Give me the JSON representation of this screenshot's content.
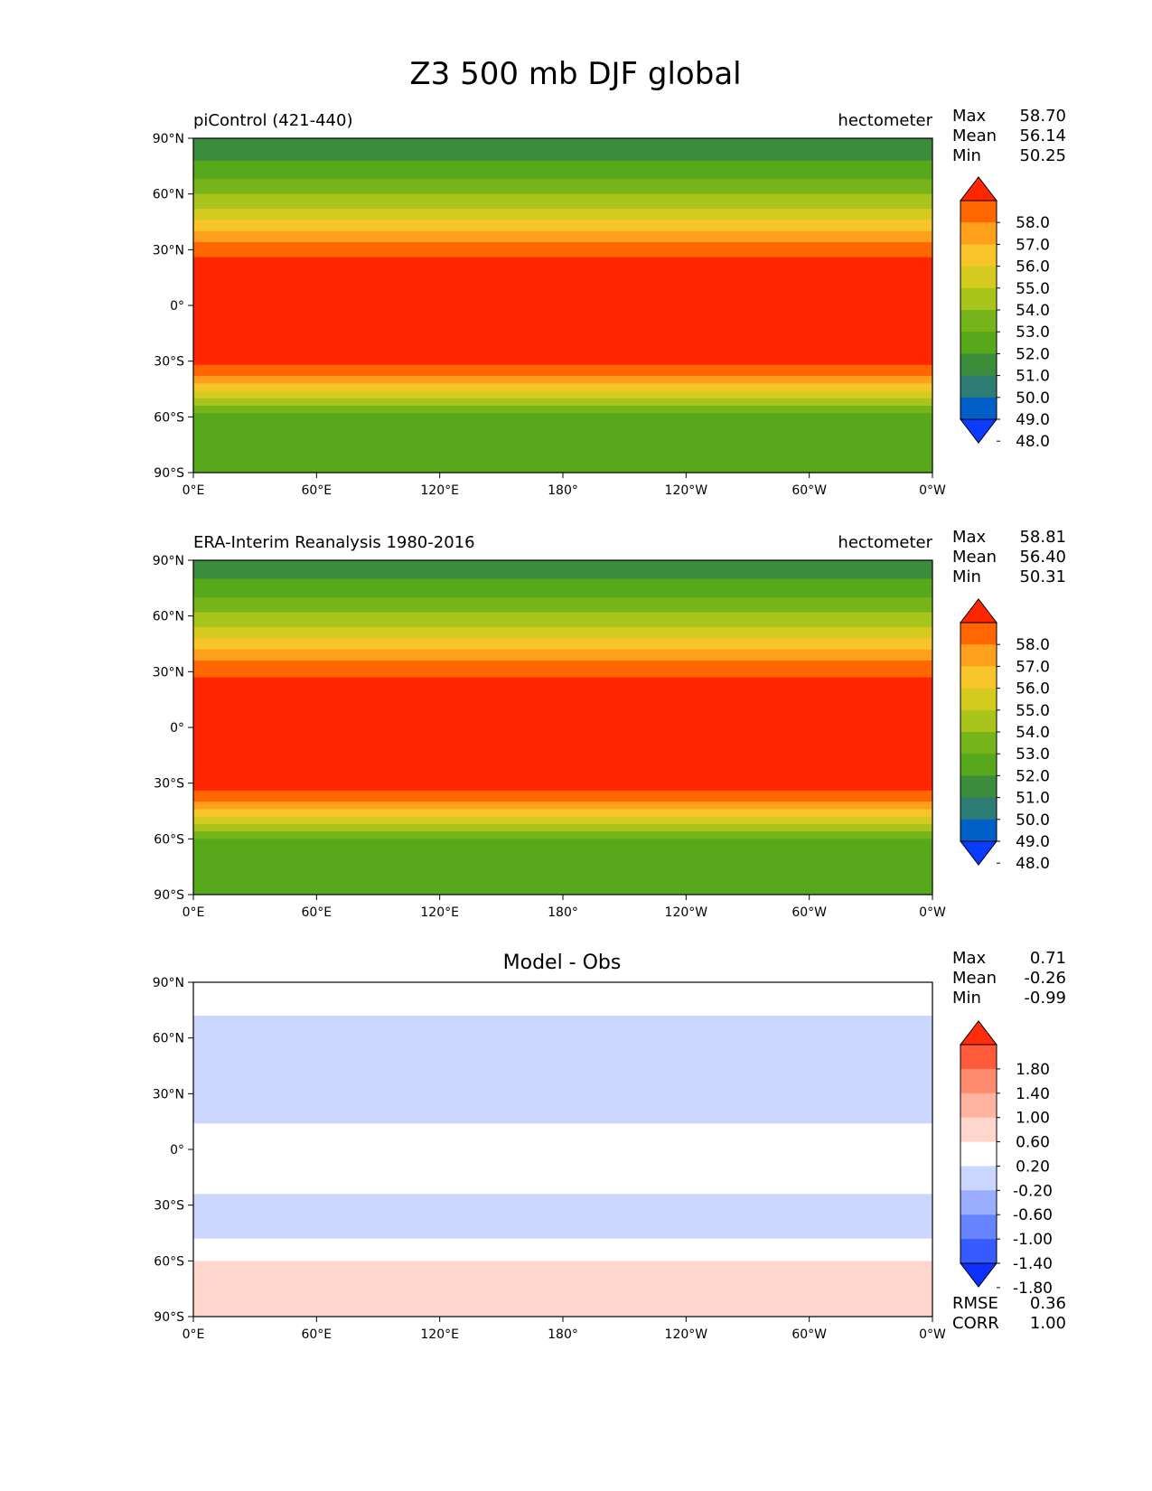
{
  "figure": {
    "title": "Z3 500 mb DJF global"
  },
  "colormap_main": {
    "labels": [
      "58.0",
      "57.0",
      "56.0",
      "55.0",
      "54.0",
      "53.0",
      "52.0",
      "51.0",
      "50.0",
      "49.0",
      "48.0"
    ],
    "colors": [
      "#ff2600",
      "#ff6600",
      "#ffa01c",
      "#f7c52a",
      "#d5cb1e",
      "#a9c51c",
      "#75b41a",
      "#57a81a",
      "#3b8c3b",
      "#2d7d74",
      "#0060c8",
      "#0a3cff"
    ]
  },
  "colormap_diff": {
    "labels": [
      "1.80",
      "1.40",
      "1.00",
      "0.60",
      "0.20",
      "-0.20",
      "-0.60",
      "-1.00",
      "-1.40",
      "-1.80"
    ],
    "colors": [
      "#ff2b0d",
      "#ff5a3a",
      "#ff8b6e",
      "#ffb3a0",
      "#ffd6cc",
      "#ffffff",
      "#cbd6ff",
      "#9aadff",
      "#6784ff",
      "#365cff",
      "#0b30ff"
    ]
  },
  "axes": {
    "lat_ticks": [
      "90°N",
      "60°N",
      "30°N",
      "0°",
      "30°S",
      "60°S",
      "90°S"
    ],
    "lon_ticks": [
      "0°E",
      "60°E",
      "120°E",
      "180°",
      "120°W",
      "60°W",
      "0°W"
    ]
  },
  "panels": [
    {
      "id": "test",
      "left_title": "piControl (421-440)",
      "center_title": "",
      "right_title": "hectometer",
      "stats": [
        {
          "label": "Max",
          "value": "58.70"
        },
        {
          "label": "Mean",
          "value": "56.14"
        },
        {
          "label": "Min",
          "value": "50.25"
        }
      ],
      "colorbar": "main",
      "field": {
        "lat_bands": [
          {
            "lat_top": 90,
            "lat_bottom": 78,
            "value_class": 8
          },
          {
            "lat_top": 78,
            "lat_bottom": 68,
            "value_class": 7
          },
          {
            "lat_top": 68,
            "lat_bottom": 60,
            "value_class": 6
          },
          {
            "lat_top": 60,
            "lat_bottom": 52,
            "value_class": 5
          },
          {
            "lat_top": 52,
            "lat_bottom": 46,
            "value_class": 4
          },
          {
            "lat_top": 46,
            "lat_bottom": 40,
            "value_class": 3
          },
          {
            "lat_top": 40,
            "lat_bottom": 34,
            "value_class": 2
          },
          {
            "lat_top": 34,
            "lat_bottom": 26,
            "value_class": 1
          },
          {
            "lat_top": 26,
            "lat_bottom": -32,
            "value_class": 0
          },
          {
            "lat_top": -32,
            "lat_bottom": -38,
            "value_class": 1
          },
          {
            "lat_top": -38,
            "lat_bottom": -42,
            "value_class": 2
          },
          {
            "lat_top": -42,
            "lat_bottom": -46,
            "value_class": 3
          },
          {
            "lat_top": -46,
            "lat_bottom": -50,
            "value_class": 4
          },
          {
            "lat_top": -50,
            "lat_bottom": -54,
            "value_class": 5
          },
          {
            "lat_top": -54,
            "lat_bottom": -58,
            "value_class": 6
          },
          {
            "lat_top": -58,
            "lat_bottom": -90,
            "value_class": 7
          }
        ]
      }
    },
    {
      "id": "reference",
      "left_title": "ERA-Interim Reanalysis 1980-2016",
      "center_title": "",
      "right_title": "hectometer",
      "stats": [
        {
          "label": "Max",
          "value": "58.81"
        },
        {
          "label": "Mean",
          "value": "56.40"
        },
        {
          "label": "Min",
          "value": "50.31"
        }
      ],
      "colorbar": "main",
      "field": {
        "lat_bands": [
          {
            "lat_top": 90,
            "lat_bottom": 80,
            "value_class": 8
          },
          {
            "lat_top": 80,
            "lat_bottom": 70,
            "value_class": 7
          },
          {
            "lat_top": 70,
            "lat_bottom": 62,
            "value_class": 6
          },
          {
            "lat_top": 62,
            "lat_bottom": 54,
            "value_class": 5
          },
          {
            "lat_top": 54,
            "lat_bottom": 48,
            "value_class": 4
          },
          {
            "lat_top": 48,
            "lat_bottom": 42,
            "value_class": 3
          },
          {
            "lat_top": 42,
            "lat_bottom": 36,
            "value_class": 2
          },
          {
            "lat_top": 36,
            "lat_bottom": 27,
            "value_class": 1
          },
          {
            "lat_top": 27,
            "lat_bottom": -34,
            "value_class": 0
          },
          {
            "lat_top": -34,
            "lat_bottom": -40,
            "value_class": 1
          },
          {
            "lat_top": -40,
            "lat_bottom": -44,
            "value_class": 2
          },
          {
            "lat_top": -44,
            "lat_bottom": -48,
            "value_class": 3
          },
          {
            "lat_top": -48,
            "lat_bottom": -52,
            "value_class": 4
          },
          {
            "lat_top": -52,
            "lat_bottom": -56,
            "value_class": 5
          },
          {
            "lat_top": -56,
            "lat_bottom": -60,
            "value_class": 6
          },
          {
            "lat_top": -60,
            "lat_bottom": -90,
            "value_class": 7
          }
        ]
      }
    },
    {
      "id": "difference",
      "left_title": "",
      "center_title": "Model - Obs",
      "right_title": "",
      "stats": [
        {
          "label": "Max",
          "value": "0.71"
        },
        {
          "label": "Mean",
          "value": "-0.26"
        },
        {
          "label": "Min",
          "value": "-0.99"
        }
      ],
      "extra_stats": [
        {
          "label": "RMSE",
          "value": "0.36"
        },
        {
          "label": "CORR",
          "value": "1.00"
        }
      ],
      "colorbar": "diff",
      "field": {
        "lat_bands": [
          {
            "lat_top": 90,
            "lat_bottom": 72,
            "value_class": 5
          },
          {
            "lat_top": 72,
            "lat_bottom": 14,
            "value_class": 6
          },
          {
            "lat_top": 14,
            "lat_bottom": -24,
            "value_class": 5
          },
          {
            "lat_top": -24,
            "lat_bottom": -48,
            "value_class": 6
          },
          {
            "lat_top": -48,
            "lat_bottom": -60,
            "value_class": 5
          },
          {
            "lat_top": -60,
            "lat_bottom": -90,
            "value_class": 4
          }
        ]
      }
    }
  ]
}
